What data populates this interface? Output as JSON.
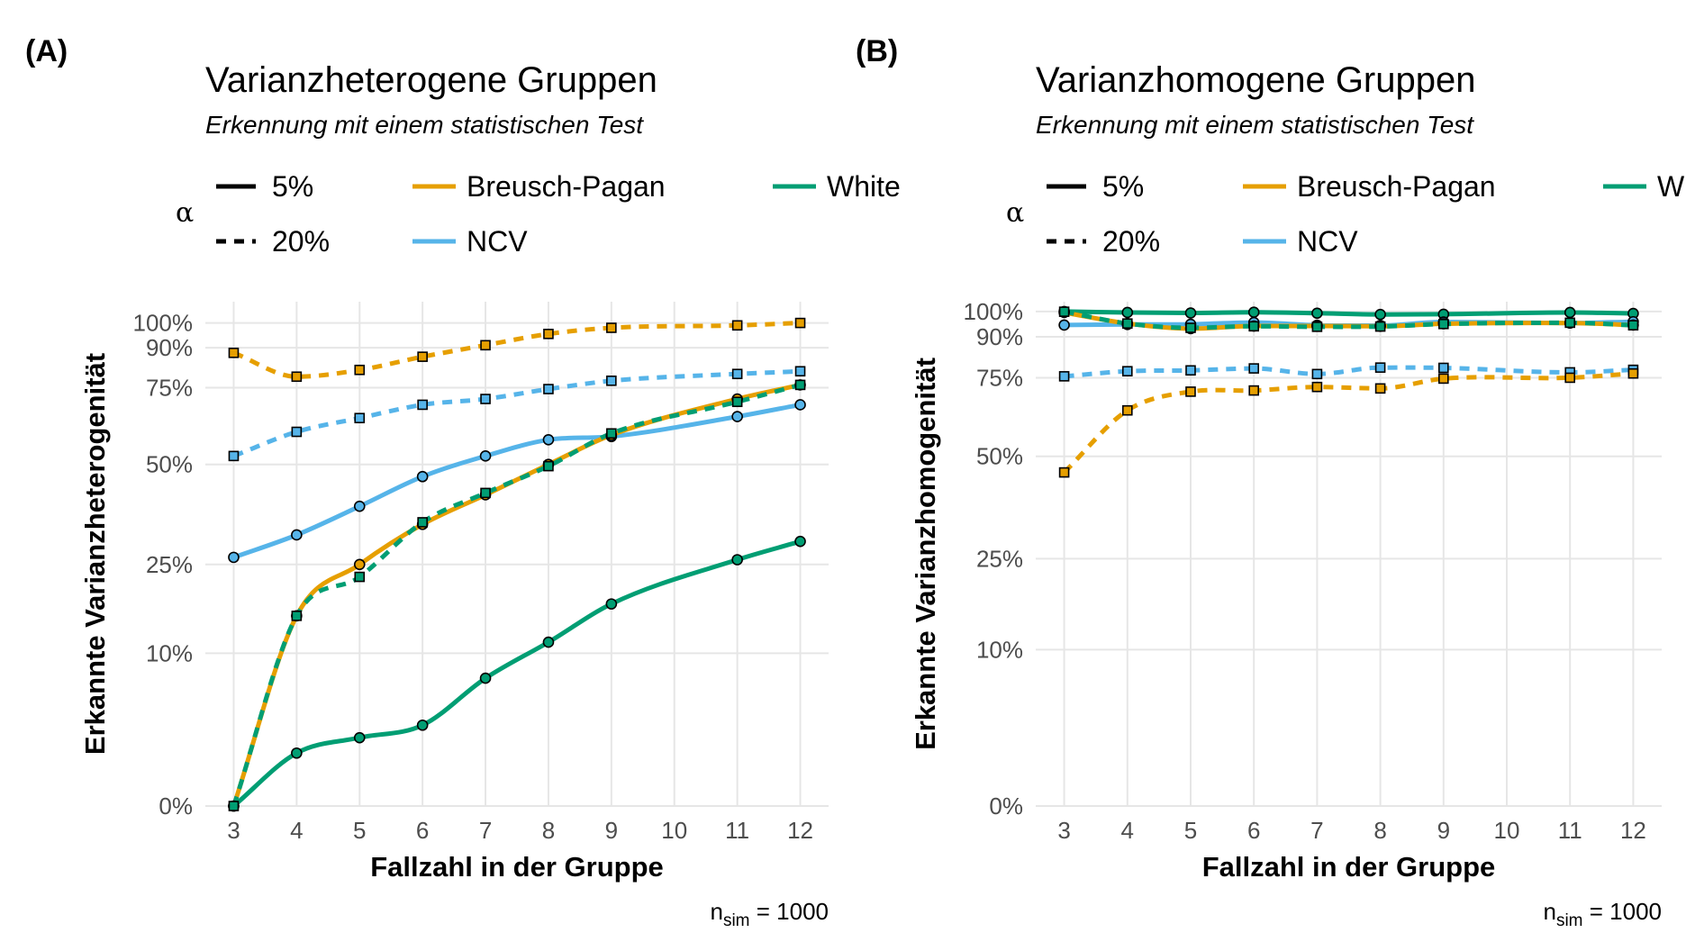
{
  "chart_data": [
    {
      "panel_tag": "(A)",
      "type": "line",
      "title": "Varianzheterogene Gruppen",
      "subtitle": "Erkennung mit einem statistischen Test",
      "xlabel": "Fallzahl in der Gruppe",
      "ylabel": "Erkannte Varianzheterogenität",
      "caption": {
        "prefix": "n",
        "sub": "sim",
        "suffix": " = 1000"
      },
      "x_ticks": [
        "3",
        "4",
        "5",
        "6",
        "7",
        "8",
        "9",
        "10",
        "11",
        "12"
      ],
      "y_ticks": [
        {
          "value": 0,
          "label": "0%"
        },
        {
          "value": 10,
          "label": "10%"
        },
        {
          "value": 25,
          "label": "25%"
        },
        {
          "value": 50,
          "label": "50%"
        },
        {
          "value": 75,
          "label": "75%"
        },
        {
          "value": 90,
          "label": "90%"
        },
        {
          "value": 100,
          "label": "100%"
        }
      ],
      "y_scale": "sqrt",
      "xlim": [
        2.55,
        12.45
      ],
      "ylim": [
        0,
        109
      ],
      "legend": {
        "alpha_symbol": "α",
        "linetypes": [
          {
            "label": "5%",
            "dash": "solid"
          },
          {
            "label": "20%",
            "dash": "dashed"
          }
        ],
        "colors": [
          {
            "label": "Breusch-Pagan",
            "color": "#E69F00"
          },
          {
            "label": "White",
            "color": "#009E73"
          },
          {
            "label": "NCV",
            "color": "#56B4E9"
          }
        ]
      },
      "x": [
        3,
        4,
        5,
        6,
        7,
        8,
        9,
        11,
        12
      ],
      "series": [
        {
          "test": "NCV",
          "alpha": "5%",
          "color": "#56B4E9",
          "dash": "solid",
          "marker": "circle",
          "values": [
            26.5,
            31.5,
            38.5,
            46.5,
            52.5,
            57.5,
            58.5,
            65,
            69
          ]
        },
        {
          "test": "White",
          "alpha": "5%",
          "color": "#009E73",
          "dash": "solid",
          "marker": "circle",
          "values": [
            0,
            1.2,
            2,
            2.8,
            7,
            11.5,
            17.5,
            26,
            30
          ]
        },
        {
          "test": "Breusch-Pagan",
          "alpha": "5%",
          "color": "#E69F00",
          "dash": "solid",
          "marker": "circle",
          "values": [
            0,
            15.5,
            25,
            34,
            41.5,
            50,
            59,
            71,
            76
          ]
        },
        {
          "test": "White",
          "alpha": "20%",
          "color": "#009E73",
          "dash": "dashed",
          "marker": "square",
          "values": [
            0,
            15.5,
            22.5,
            34.5,
            42,
            49.5,
            59.5,
            70,
            76
          ]
        },
        {
          "test": "Breusch-Pagan",
          "alpha": "20%",
          "color": "#E69F00",
          "dash": "dashed",
          "marker": "square",
          "values": [
            88,
            79,
            81.5,
            86.5,
            91,
            95.5,
            98,
            99,
            100
          ]
        },
        {
          "test": "NCV",
          "alpha": "20%",
          "color": "#56B4E9",
          "dash": "dashed",
          "marker": "square",
          "values": [
            52.5,
            60,
            64.5,
            69,
            71,
            74.5,
            77.5,
            80,
            81
          ]
        }
      ]
    },
    {
      "panel_tag": "(B)",
      "type": "line",
      "title": "Varianzhomogene Gruppen",
      "subtitle": "Erkennung mit einem statistischen Test",
      "xlabel": "Fallzahl in der Gruppe",
      "ylabel": "Erkannte Varianzhomogenität",
      "caption": {
        "prefix": "n",
        "sub": "sim",
        "suffix": " = 1000"
      },
      "x_ticks": [
        "3",
        "4",
        "5",
        "6",
        "7",
        "8",
        "9",
        "10",
        "11",
        "12"
      ],
      "y_ticks": [
        {
          "value": 0,
          "label": "0%"
        },
        {
          "value": 10,
          "label": "10%"
        },
        {
          "value": 25,
          "label": "25%"
        },
        {
          "value": 50,
          "label": "50%"
        },
        {
          "value": 75,
          "label": "75%"
        },
        {
          "value": 90,
          "label": "90%"
        },
        {
          "value": 100,
          "label": "100%"
        }
      ],
      "y_scale": "sqrt",
      "xlim": [
        2.55,
        12.45
      ],
      "ylim": [
        0,
        104
      ],
      "legend": {
        "alpha_symbol": "α",
        "linetypes": [
          {
            "label": "5%",
            "dash": "solid"
          },
          {
            "label": "20%",
            "dash": "dashed"
          }
        ],
        "colors": [
          {
            "label": "Breusch-Pagan",
            "color": "#E69F00"
          },
          {
            "label": "White",
            "color": "#009E73"
          },
          {
            "label": "NCV",
            "color": "#56B4E9"
          }
        ]
      },
      "x": [
        3,
        4,
        5,
        6,
        7,
        8,
        9,
        11,
        12
      ],
      "series": [
        {
          "test": "White",
          "alpha": "5%",
          "color": "#009E73",
          "dash": "solid",
          "marker": "circle",
          "values": [
            100,
            99.6,
            99.4,
            99.7,
            99.3,
            98.8,
            98.9,
            99.6,
            99.2
          ]
        },
        {
          "test": "NCV",
          "alpha": "5%",
          "color": "#56B4E9",
          "dash": "solid",
          "marker": "circle",
          "values": [
            94.6,
            94.8,
            94.9,
            95.6,
            94.5,
            94.4,
            95.8,
            95.4,
            95.9
          ]
        },
        {
          "test": "Breusch-Pagan",
          "alpha": "5%",
          "color": "#E69F00",
          "dash": "solid",
          "marker": "circle",
          "values": [
            99.6,
            95.2,
            93.2,
            94.2,
            94.2,
            94.1,
            95.1,
            95.4,
            94.6
          ]
        },
        {
          "test": "White",
          "alpha": "20%",
          "color": "#009E73",
          "dash": "dashed",
          "marker": "square",
          "values": [
            99.9,
            95.2,
            93.5,
            94.1,
            93.9,
            94.0,
            95.0,
            95.5,
            94.5
          ]
        },
        {
          "test": "NCV",
          "alpha": "20%",
          "color": "#56B4E9",
          "dash": "dashed",
          "marker": "square",
          "values": [
            75.5,
            77.3,
            77.6,
            78.3,
            76.3,
            78.6,
            78.5,
            76.9,
            77.8
          ]
        },
        {
          "test": "Breusch-Pagan",
          "alpha": "20%",
          "color": "#E69F00",
          "dash": "dashed",
          "marker": "square",
          "values": [
            45.5,
            64,
            70.2,
            70.6,
            71.8,
            71.3,
            74.7,
            75,
            76.5
          ]
        }
      ]
    }
  ]
}
